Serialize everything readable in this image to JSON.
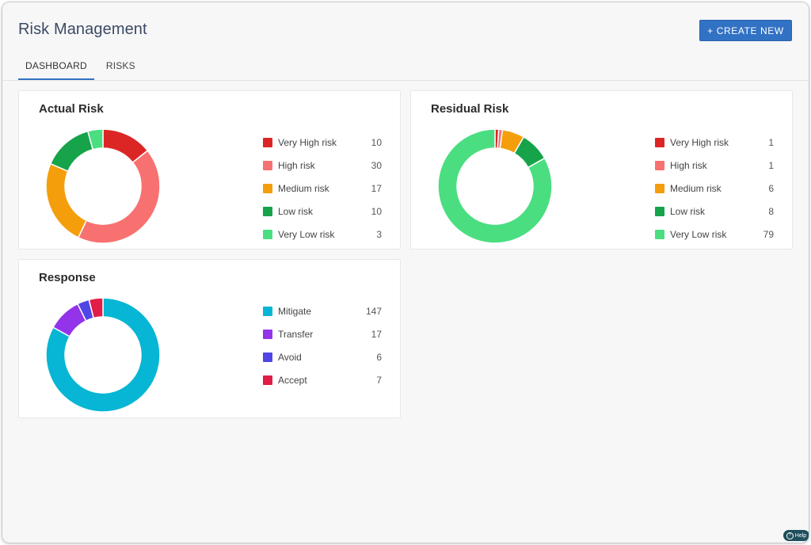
{
  "header": {
    "title": "Risk Management",
    "create_button": "+ CREATE NEW",
    "tabs": [
      {
        "label": "DASHBOARD",
        "active": true
      },
      {
        "label": "RISKS",
        "active": false
      }
    ]
  },
  "help": {
    "label": "Help",
    "icon": "question-icon"
  },
  "chart_data": [
    {
      "type": "pie",
      "title": "Actual Risk",
      "categories": [
        "Very High risk",
        "High risk",
        "Medium risk",
        "Low risk",
        "Very Low risk"
      ],
      "values": [
        10,
        30,
        17,
        10,
        3
      ],
      "colors": [
        "#dc2626",
        "#f87171",
        "#f59e0b",
        "#16a34a",
        "#4ade80"
      ]
    },
    {
      "type": "pie",
      "title": "Residual Risk",
      "categories": [
        "Very High risk",
        "High risk",
        "Medium risk",
        "Low risk",
        "Very Low risk"
      ],
      "values": [
        1,
        1,
        6,
        8,
        79
      ],
      "colors": [
        "#dc2626",
        "#f87171",
        "#f59e0b",
        "#16a34a",
        "#4ade80"
      ]
    },
    {
      "type": "pie",
      "title": "Response",
      "categories": [
        "Mitigate",
        "Transfer",
        "Avoid",
        "Accept"
      ],
      "values": [
        147,
        17,
        6,
        7
      ],
      "colors": [
        "#06b6d4",
        "#9333ea",
        "#4f46e5",
        "#e11d48"
      ]
    }
  ]
}
